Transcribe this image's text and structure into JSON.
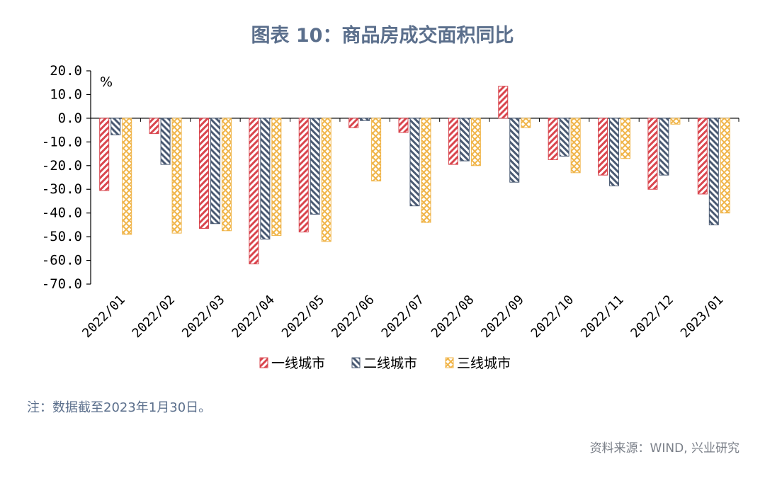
{
  "title": "图表 10：商品房成交面积同比",
  "note": "注：数据截至2023年1月30日。",
  "source": "资料来源：WIND, 兴业研究",
  "chart_data": {
    "type": "bar",
    "title": "图表 10：商品房成交面积同比",
    "unit": "%",
    "categories": [
      "2022/01",
      "2022/02",
      "2022/03",
      "2022/04",
      "2022/05",
      "2022/06",
      "2022/07",
      "2022/08",
      "2022/09",
      "2022/10",
      "2022/11",
      "2022/12",
      "2023/01"
    ],
    "yticks": [
      "20.0",
      "10.0",
      "0.0",
      "-10.0",
      "-20.0",
      "-30.0",
      "-40.0",
      "-50.0",
      "-60.0",
      "-70.0"
    ],
    "ylim": [
      -70,
      20
    ],
    "legend_position": "bottom",
    "grid": false,
    "series": [
      {
        "name": "一线城市",
        "color": "#d9464e",
        "pattern": "diagonal-hatch",
        "values": [
          -30.5,
          -6.5,
          -46.5,
          -61.5,
          -48.0,
          -4.0,
          -6.0,
          -19.5,
          13.5,
          -17.5,
          -24.0,
          -30.0,
          -32.0
        ]
      },
      {
        "name": "二线城市",
        "color": "#4a5a73",
        "pattern": "diagonal-hatch",
        "values": [
          -7.0,
          -19.5,
          -44.5,
          -51.0,
          -40.5,
          -1.0,
          -37.0,
          -18.0,
          -27.0,
          -16.0,
          -28.5,
          -24.0,
          -45.0
        ]
      },
      {
        "name": "三线城市",
        "color": "#f0b54a",
        "pattern": "crosshatch",
        "values": [
          -49.0,
          -48.5,
          -47.5,
          -49.5,
          -52.0,
          -26.5,
          -44.0,
          -20.0,
          -4.0,
          -23.0,
          -17.0,
          -2.5,
          -40.0
        ]
      }
    ]
  }
}
